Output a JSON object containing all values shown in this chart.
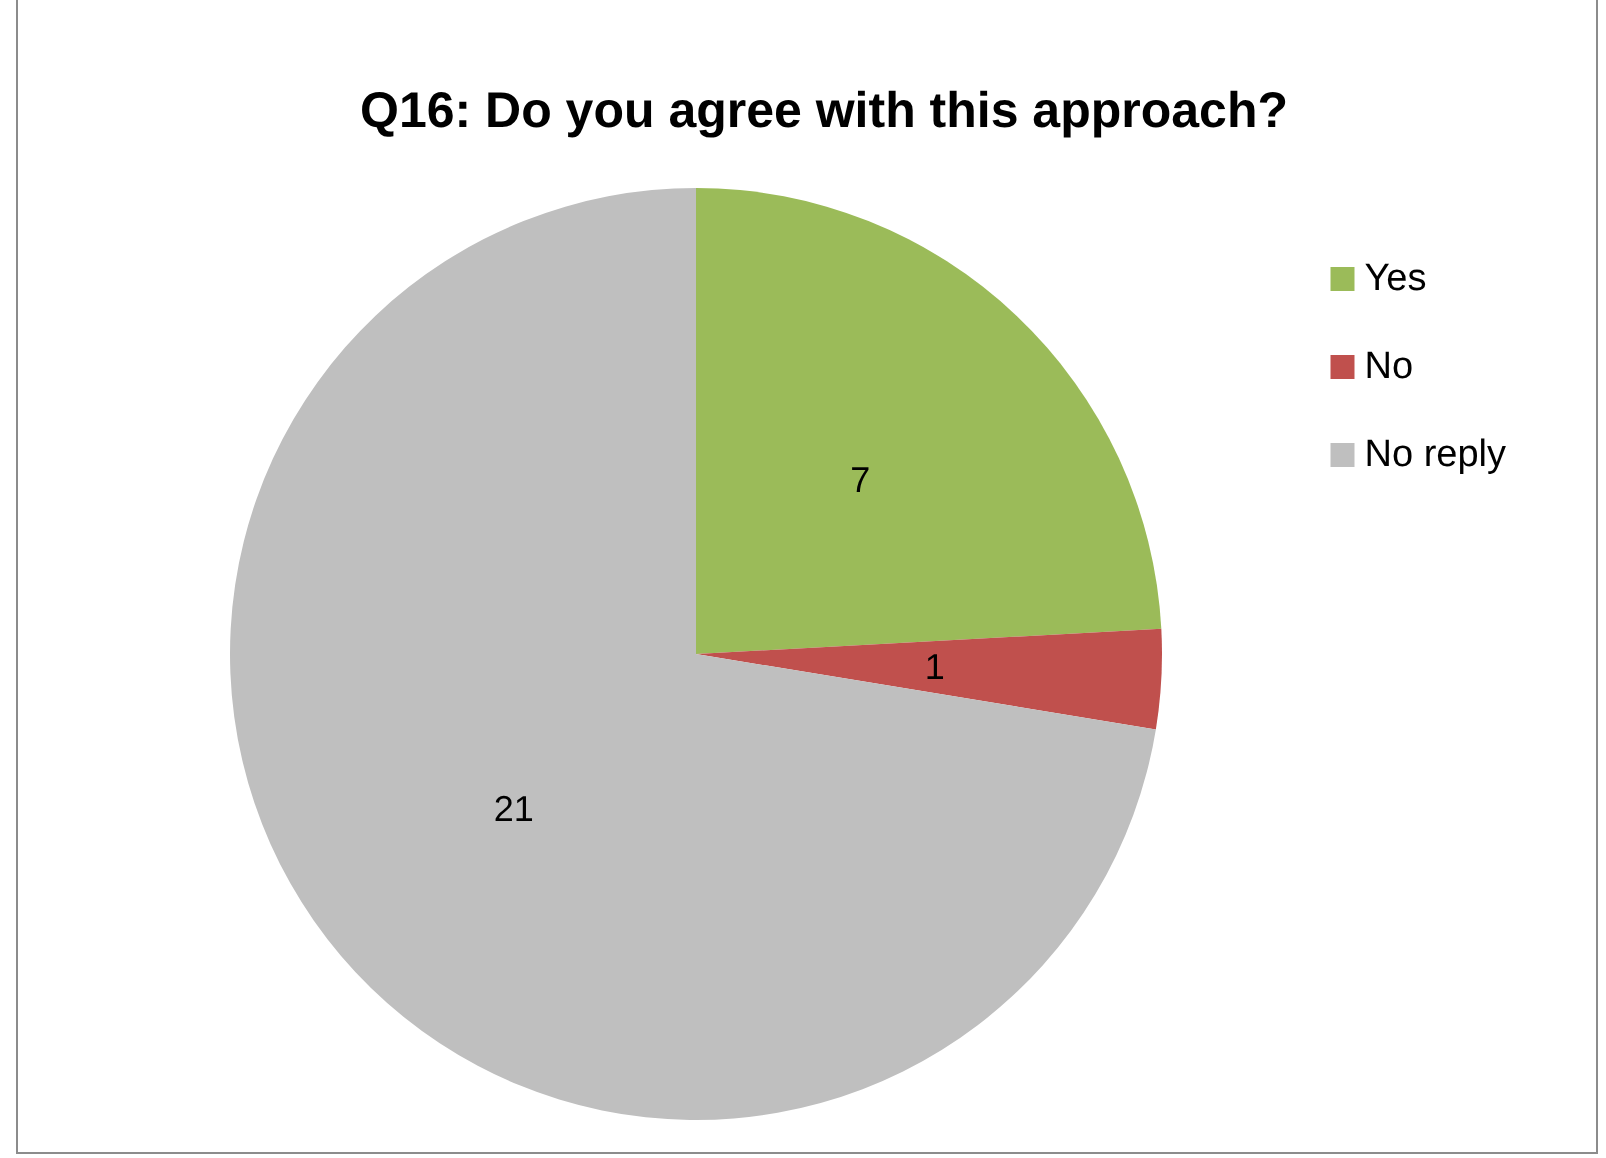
{
  "chart_data": {
    "type": "pie",
    "title": "Q16: Do you agree with this approach?",
    "categories": [
      "Yes",
      "No",
      "No reply"
    ],
    "values": [
      7,
      1,
      21
    ],
    "colors": [
      "#9bbb59",
      "#c0504d",
      "#bfbfbf"
    ],
    "data_labels": true,
    "legend": "right"
  }
}
